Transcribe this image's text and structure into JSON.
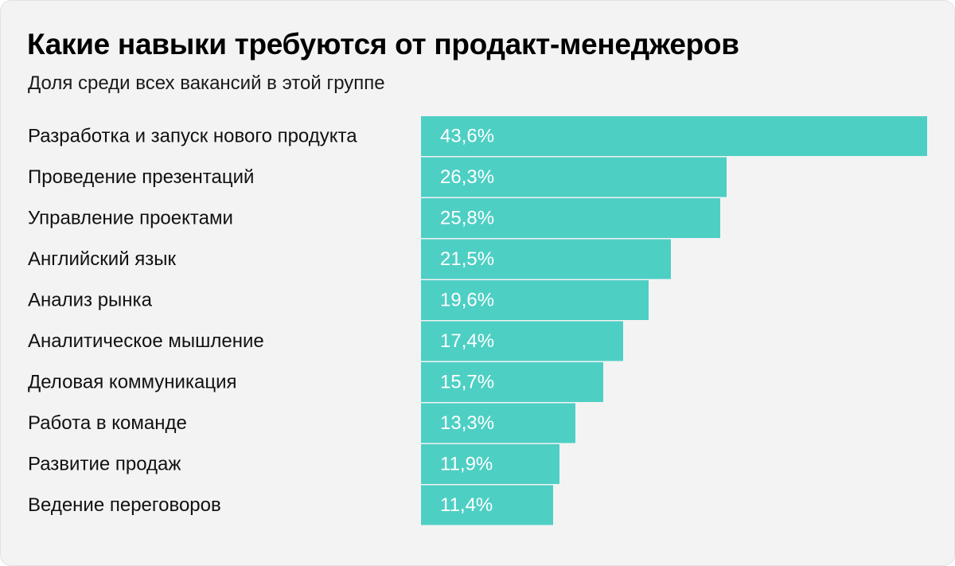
{
  "chart_data": {
    "type": "bar",
    "orientation": "horizontal",
    "title": "Какие навыки требуются от продакт-менеджеров",
    "subtitle": "Доля среди всех вакансий в этой группе",
    "categories": [
      "Разработка и запуск нового продукта",
      "Проведение презентаций",
      "Управление проектами",
      "Английский язык",
      "Анализ рынка",
      "Аналитическое мышление",
      "Деловая коммуникация",
      "Работа в команде",
      "Развитие продаж",
      "Ведение переговоров"
    ],
    "values": [
      43.6,
      26.3,
      25.8,
      21.5,
      19.6,
      17.4,
      15.7,
      13.3,
      11.9,
      11.4
    ],
    "value_labels": [
      "43,6%",
      "26,3%",
      "25,8%",
      "21,5%",
      "19,6%",
      "17,4%",
      "15,7%",
      "13,3%",
      "11,9%",
      "11,4%"
    ],
    "unit": "%",
    "xlim": [
      0,
      43.6
    ],
    "grid": false,
    "legend": "none",
    "colors": {
      "bar": "#4ecfc4",
      "value_text": "#ffffff",
      "background": "#f3f3f3"
    }
  }
}
